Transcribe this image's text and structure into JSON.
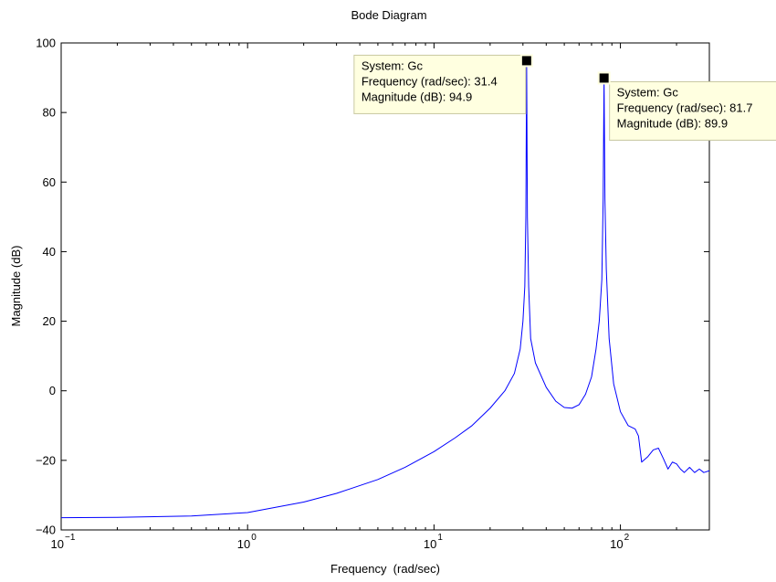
{
  "chart_data": {
    "type": "line",
    "title": "Bode Diagram",
    "xlabel": "Frequency  (rad/sec)",
    "ylabel": "Magnitude (dB)",
    "xscale": "log",
    "xlim": [
      0.1,
      300
    ],
    "ylim": [
      -40,
      100
    ],
    "grid": false,
    "x_ticks": [
      {
        "value": 0.1,
        "base": "10",
        "exp": "−1"
      },
      {
        "value": 1,
        "base": "10",
        "exp": "0"
      },
      {
        "value": 10,
        "base": "10",
        "exp": "1"
      },
      {
        "value": 100,
        "base": "10",
        "exp": "2"
      }
    ],
    "y_ticks": [
      {
        "value": -40,
        "label": "−40"
      },
      {
        "value": -20,
        "label": "−20"
      },
      {
        "value": 0,
        "label": "0"
      },
      {
        "value": 20,
        "label": "20"
      },
      {
        "value": 40,
        "label": "40"
      },
      {
        "value": 60,
        "label": "60"
      },
      {
        "value": 80,
        "label": "80"
      },
      {
        "value": 100,
        "label": "100"
      }
    ],
    "series": [
      {
        "color": "#0000ff",
        "x": [
          0.1,
          0.2,
          0.5,
          1,
          2,
          3,
          5,
          7,
          10,
          13,
          16,
          20,
          24,
          27,
          29,
          30,
          30.7,
          31.1,
          31.4,
          31.7,
          32.2,
          33,
          35,
          40,
          45,
          50,
          55,
          60,
          65,
          70,
          74,
          77,
          79.5,
          80.8,
          81.7,
          82.6,
          84,
          87,
          92,
          100,
          110,
          120,
          125,
          130,
          140,
          150,
          160,
          170,
          180,
          190,
          200,
          210,
          220,
          235,
          250,
          265,
          280,
          300
        ],
        "y": [
          -36.5,
          -36.4,
          -36.0,
          -35,
          -32,
          -29.5,
          -25.5,
          -22,
          -17.5,
          -13.5,
          -10,
          -5,
          0,
          5,
          12,
          20,
          30,
          50,
          94.9,
          50,
          30,
          15,
          8,
          1,
          -3,
          -4.8,
          -5,
          -4,
          -1,
          4,
          12,
          20,
          32,
          55,
          89.9,
          55,
          35,
          15,
          2,
          -6,
          -10,
          -11,
          -13,
          -20.5,
          -19,
          -17,
          -16.5,
          -19.5,
          -22.5,
          -20.5,
          -21,
          -22.5,
          -23.5,
          -22,
          -23.5,
          -22.5,
          -23.5,
          -23
        ]
      }
    ],
    "annotations": [
      {
        "x": 31.4,
        "y": 94.9,
        "lines": [
          "System: Gc",
          "Frequency (rad/sec): 31.4",
          "Magnitude (dB): 94.9"
        ],
        "placement": "upper-left"
      },
      {
        "x": 81.7,
        "y": 89.9,
        "lines": [
          "System: Gc",
          "Frequency (rad/sec): 81.7",
          "Magnitude (dB): 89.9"
        ],
        "placement": "lower-right"
      }
    ],
    "colors": {
      "datatip_bg": "#ffffe0",
      "datatip_border": "#c8c8a0",
      "marker": "#000000"
    }
  }
}
